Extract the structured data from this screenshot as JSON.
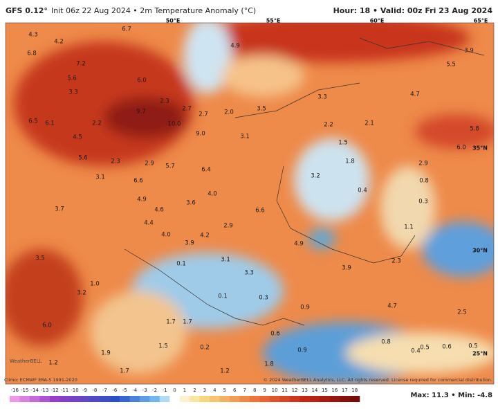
{
  "header": {
    "title_model": "GFS 0.12°",
    "title_rest": "Init 06z 22 Aug 2024 • 2m Temperature Anomaly (°C)",
    "valid": "Hour: 18 • Valid: 00z Fri 23 Aug 2024"
  },
  "map": {
    "geo_labels": [
      "50°E",
      "55°E",
      "60°E",
      "65°E",
      "35°N",
      "30°N",
      "25°N"
    ],
    "value_labels": [
      "6.7",
      "4.3",
      "4.2",
      "6.8",
      "7.2",
      "4.9",
      "3.9",
      "5.5",
      "5.6",
      "6.0",
      "4.7",
      "3.3",
      "2.3",
      "2.7",
      "2.7",
      "2.0",
      "3.5",
      "3.3",
      "9.7",
      "6.5",
      "6.1",
      "2.2",
      "10.0",
      "2.2",
      "2.1",
      "5.8",
      "9.0",
      "3.1",
      "4.5",
      "1.5",
      "6.0",
      "5.6",
      "2.3",
      "2.9",
      "5.7",
      "1.8",
      "2.9",
      "3.1",
      "6.4",
      "3.2",
      "0.8",
      "6.6",
      "0.4",
      "4.0",
      "4.9",
      "0.3",
      "3.6",
      "4.6",
      "3.7",
      "6.6",
      "4.4",
      "2.9",
      "1.1",
      "4.0",
      "4.2",
      "3.9",
      "4.9",
      "3.5",
      "3.1",
      "2.3",
      "3.9",
      "0.1",
      "3.3",
      "1.0",
      "3.2",
      "0.1",
      "0.3",
      "0.9",
      "4.7",
      "2.5",
      "1.7",
      "1.7",
      "6.0",
      "0.6",
      "1.5",
      "0.2",
      "0.5",
      "0.6",
      "0.5",
      "1.9",
      "0.9",
      "1.2",
      "1.8",
      "1.7",
      "1.2",
      "0.8",
      "0.4"
    ],
    "logo": "WeatherBELL"
  },
  "footer": {
    "climo": "Climo: ECMWF ERA-5 1991-2020",
    "copyright": "© 2024 WeatherBELL Analytics, LLC. All rights reserved. License required for commercial distribution.",
    "max_min": "Max: 11.3 • Min: -4.8"
  },
  "colorbar": {
    "ticks": [
      -16,
      -15,
      -14,
      -13,
      -12,
      -11,
      -10,
      -9,
      -8,
      -7,
      -6,
      -5,
      -4,
      -3,
      -2,
      -1,
      0,
      1,
      2,
      3,
      4,
      5,
      6,
      7,
      8,
      9,
      10,
      11,
      12,
      13,
      14,
      15,
      16,
      17,
      18
    ]
  }
}
